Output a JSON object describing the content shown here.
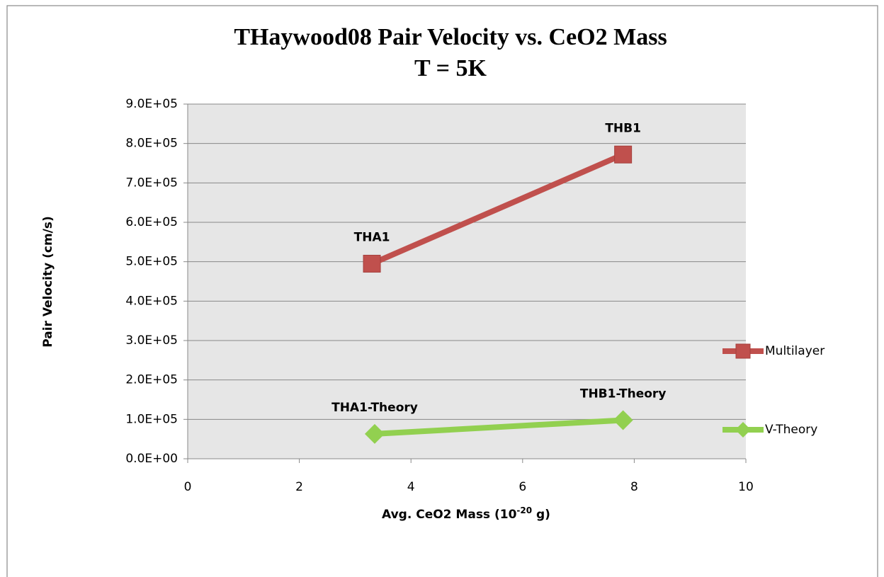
{
  "chart_data": {
    "type": "line",
    "title": [
      "THaywood08 Pair Velocity vs. CeO2 Mass",
      "T = 5K"
    ],
    "xlabel": [
      "Avg. CeO2 Mass (10",
      "-20",
      " g)"
    ],
    "ylabel": "Pair Velocity (cm/s)",
    "xlim": [
      0,
      10
    ],
    "xticks": [
      0,
      2,
      4,
      6,
      8,
      10
    ],
    "ylim": [
      0,
      900000
    ],
    "yticks": [
      {
        "value": 0,
        "label": "0.0E+00"
      },
      {
        "value": 100000,
        "label": "1.0E+05"
      },
      {
        "value": 200000,
        "label": "2.0E+05"
      },
      {
        "value": 300000,
        "label": "3.0E+05"
      },
      {
        "value": 400000,
        "label": "4.0E+05"
      },
      {
        "value": 500000,
        "label": "5.0E+05"
      },
      {
        "value": 600000,
        "label": "6.0E+05"
      },
      {
        "value": 700000,
        "label": "7.0E+05"
      },
      {
        "value": 800000,
        "label": "8.0E+05"
      },
      {
        "value": 900000,
        "label": "9.0E+05"
      }
    ],
    "grid": true,
    "legend": "right",
    "series": [
      {
        "name": "Multilayer",
        "color": "#c0504d",
        "marker": "square",
        "x": [
          3.3,
          7.8
        ],
        "values": [
          495000,
          772000
        ],
        "point_labels": [
          "THA1",
          "THB1"
        ]
      },
      {
        "name": "V-Theory",
        "color": "#92d050",
        "marker": "diamond",
        "x": [
          3.35,
          7.8
        ],
        "values": [
          63000,
          98000
        ],
        "point_labels": [
          "THA1-Theory",
          "THB1-Theory"
        ]
      }
    ]
  }
}
